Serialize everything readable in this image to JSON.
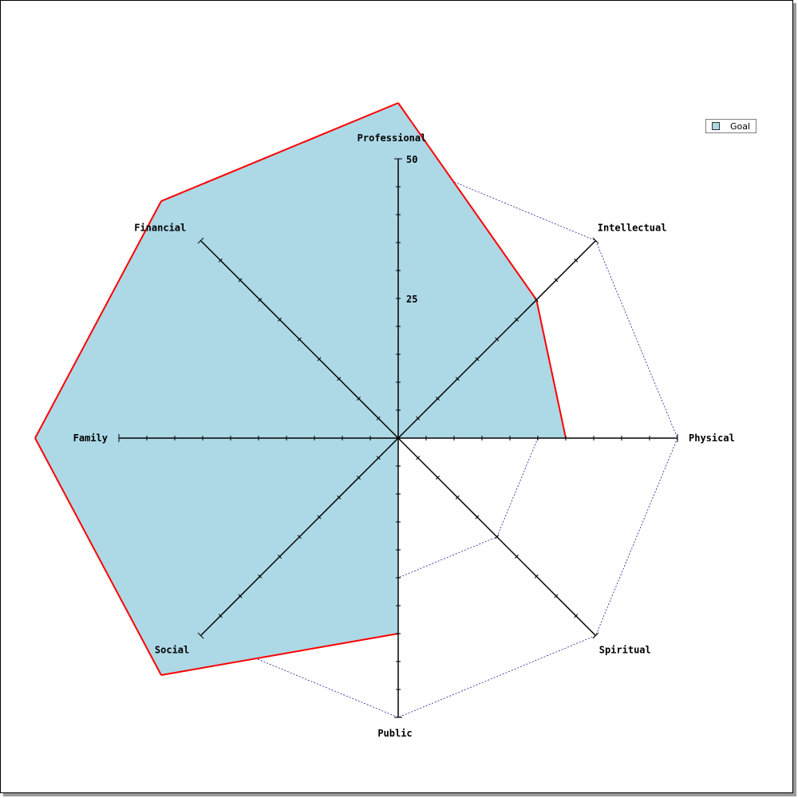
{
  "chart_data": {
    "type": "radar",
    "title": "",
    "axes": [
      "Professional",
      "Intellectual",
      "Physical",
      "Spiritual",
      "Public",
      "Social",
      "Family",
      "Financial"
    ],
    "range": [
      0,
      50
    ],
    "tick_labels": [
      "25",
      "50"
    ],
    "grid_levels": [
      25,
      50
    ],
    "minor_tick_step": 5,
    "grid": true,
    "legend_position": "top-right",
    "series": [
      {
        "name": "Goal",
        "values": [
          60,
          35,
          30,
          0,
          35,
          60,
          65,
          60
        ]
      }
    ],
    "colors": {
      "fill": "#add8e6",
      "line": "#ff0000",
      "grid": "#00008b",
      "axis": "#000000"
    }
  }
}
